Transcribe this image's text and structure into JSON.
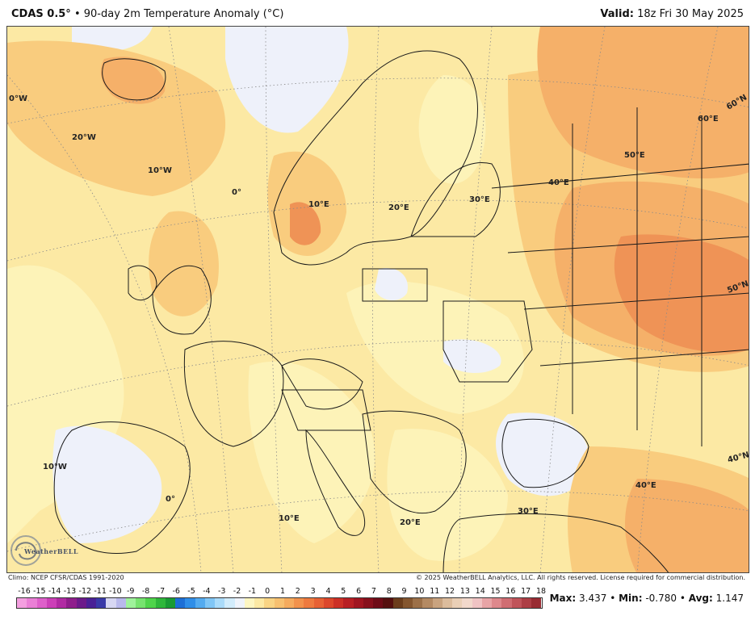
{
  "header": {
    "model": "CDAS 0.5°",
    "separator": " • ",
    "product": "90-day 2m Temperature Anomaly (°C)",
    "valid_label": "Valid:",
    "valid_time": " 18z Fri 30 May 2025"
  },
  "map": {
    "region": "Europe",
    "longitude_labels": [
      "0°W",
      "20°W",
      "10°W",
      "0°",
      "10°E",
      "20°E",
      "30°E",
      "40°E",
      "50°E",
      "60°E",
      "10°W",
      "0°",
      "10°E",
      "20°E",
      "30°E",
      "40°E"
    ],
    "latitude_labels": [
      "60°N",
      "50°N",
      "40°N"
    ],
    "colors": {
      "ocean_base": "#fce9a4",
      "light_yellow": "#fdf3b8",
      "pale_blue": "#eef1fa",
      "light_orange": "#f9cc7e",
      "orange": "#f5b069",
      "deep_orange": "#ef9356",
      "border": "#1a1a1a"
    }
  },
  "logo": {
    "text": "WeatherBELL"
  },
  "footer": {
    "climo": "Climo: NCEP CFSR/CDAS 1991-2020",
    "copyright": "© 2025 WeatherBELL Analytics, LLC. All rights reserved. License required for commercial distribution."
  },
  "colorbar": {
    "labels": [
      "-16",
      "-15",
      "-14",
      "-13",
      "-12",
      "-11",
      "-10",
      "-9",
      "-8",
      "-7",
      "-6",
      "-5",
      "-4",
      "-3",
      "-2",
      "-1",
      "0",
      "1",
      "2",
      "3",
      "4",
      "5",
      "6",
      "7",
      "8",
      "9",
      "10",
      "11",
      "12",
      "13",
      "14",
      "15",
      "16",
      "17",
      "18"
    ],
    "colors": [
      "#f49fe0",
      "#ea7fd6",
      "#de5fca",
      "#cc3fb8",
      "#b12aa3",
      "#8f1d8c",
      "#6c1a8a",
      "#4a2196",
      "#3a3aa8",
      "#d7d7f3",
      "#b9b9ec",
      "#9ff29b",
      "#77e36f",
      "#4fd44b",
      "#2fb73b",
      "#1a9b34",
      "#1d6fd6",
      "#2f8ee8",
      "#54abf0",
      "#80c6f6",
      "#aadbfa",
      "#d2ecfc",
      "#eff3fb",
      "#fdf6c2",
      "#fce9a4",
      "#f9d484",
      "#f7c070",
      "#f5ab5e",
      "#f2924c",
      "#ee7a3f",
      "#e76134",
      "#dc472b",
      "#cc3026",
      "#b81f23",
      "#a01520",
      "#87101c",
      "#6e0c17",
      "#55100f",
      "#6b3d1c",
      "#84562f",
      "#9c7048",
      "#b48a63",
      "#c9a37f",
      "#dcbc9c",
      "#eacfb6",
      "#f2d8cb",
      "#f0c3c3",
      "#e8a4a6",
      "#de888c",
      "#d06d72",
      "#c0545a",
      "#ad3e45",
      "#982b32"
    ]
  },
  "stats": {
    "max_label": "Max:",
    "max_value": "3.437",
    "min_label": "Min:",
    "min_value": "-0.780",
    "avg_label": "Avg:",
    "avg_value": "1.147",
    "dot": " • "
  }
}
